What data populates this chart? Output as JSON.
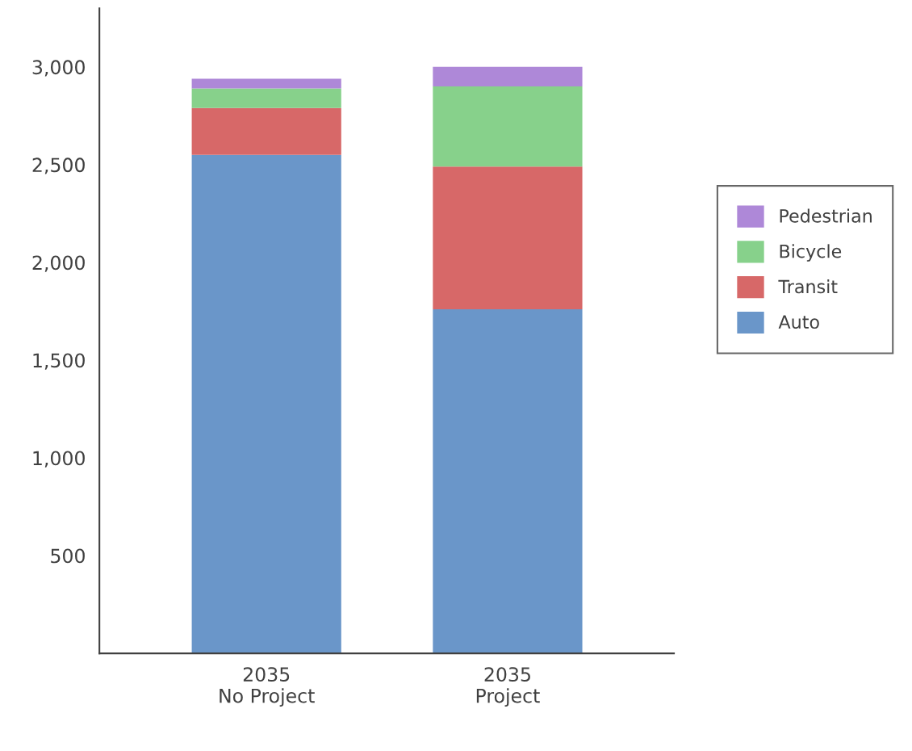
{
  "chart_data": {
    "type": "bar",
    "stacked": true,
    "categories": [
      "2035\nNo Project",
      "2035\nProject"
    ],
    "series": [
      {
        "name": "Auto",
        "color": "#6a96c9",
        "values": [
          2550,
          1760
        ]
      },
      {
        "name": "Transit",
        "color": "#d76868",
        "values": [
          240,
          730
        ]
      },
      {
        "name": "Bicycle",
        "color": "#87d18b",
        "values": [
          100,
          410
        ]
      },
      {
        "name": "Pedestrian",
        "color": "#ae88d8",
        "values": [
          50,
          100
        ]
      }
    ],
    "ylim": [
      0,
      3300
    ],
    "yticks": [
      500,
      {
        "value": 1000,
        "label": "1,000"
      },
      {
        "value": 1500,
        "label": "1,500"
      },
      {
        "value": 2000,
        "label": "2,000"
      },
      {
        "value": 2500,
        "label": "2,500"
      },
      {
        "value": 3000,
        "label": "3,000"
      }
    ],
    "grid": false,
    "legend": "right"
  }
}
